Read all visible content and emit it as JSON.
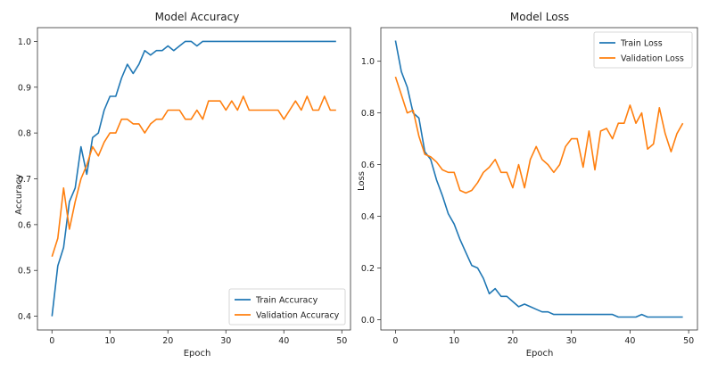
{
  "chart_data": [
    {
      "type": "line",
      "title": "Model Accuracy",
      "xlabel": "Epoch",
      "ylabel": "Accuracy",
      "xlim": [
        -2.5,
        51.5
      ],
      "ylim": [
        0.37,
        1.03
      ],
      "xticks": [
        0,
        10,
        20,
        30,
        40,
        50
      ],
      "yticks": [
        0.4,
        0.5,
        0.6,
        0.7,
        0.8,
        0.9,
        1.0
      ],
      "xtick_labels": [
        "0",
        "10",
        "20",
        "30",
        "40",
        "50"
      ],
      "ytick_labels": [
        "0.4",
        "0.5",
        "0.6",
        "0.7",
        "0.8",
        "0.9",
        "1.0"
      ],
      "grid": false,
      "legend_position": "bottom-right",
      "x": [
        0,
        1,
        2,
        3,
        4,
        5,
        6,
        7,
        8,
        9,
        10,
        11,
        12,
        13,
        14,
        15,
        16,
        17,
        18,
        19,
        20,
        21,
        22,
        23,
        24,
        25,
        26,
        27,
        28,
        29,
        30,
        31,
        32,
        33,
        34,
        35,
        36,
        37,
        38,
        39,
        40,
        41,
        42,
        43,
        44,
        45,
        46,
        47,
        48,
        49
      ],
      "series": [
        {
          "name": "Train Accuracy",
          "color": "#1f77b4",
          "values": [
            0.4,
            0.51,
            0.55,
            0.65,
            0.68,
            0.77,
            0.71,
            0.79,
            0.8,
            0.85,
            0.88,
            0.88,
            0.92,
            0.95,
            0.93,
            0.95,
            0.98,
            0.97,
            0.98,
            0.98,
            0.99,
            0.98,
            0.99,
            1.0,
            1.0,
            0.99,
            1.0,
            1.0,
            1.0,
            1.0,
            1.0,
            1.0,
            1.0,
            1.0,
            1.0,
            1.0,
            1.0,
            1.0,
            1.0,
            1.0,
            1.0,
            1.0,
            1.0,
            1.0,
            1.0,
            1.0,
            1.0,
            1.0,
            1.0,
            1.0
          ]
        },
        {
          "name": "Validation Accuracy",
          "color": "#ff7f0e",
          "values": [
            0.53,
            0.57,
            0.68,
            0.59,
            0.65,
            0.7,
            0.73,
            0.77,
            0.75,
            0.78,
            0.8,
            0.8,
            0.83,
            0.83,
            0.82,
            0.82,
            0.8,
            0.82,
            0.83,
            0.83,
            0.85,
            0.85,
            0.85,
            0.83,
            0.83,
            0.85,
            0.83,
            0.87,
            0.87,
            0.87,
            0.85,
            0.87,
            0.85,
            0.88,
            0.85,
            0.85,
            0.85,
            0.85,
            0.85,
            0.85,
            0.83,
            0.85,
            0.87,
            0.85,
            0.88,
            0.85,
            0.85,
            0.88,
            0.85,
            0.85
          ]
        }
      ]
    },
    {
      "type": "line",
      "title": "Model Loss",
      "xlabel": "Epoch",
      "ylabel": "Loss",
      "xlim": [
        -2.5,
        51.5
      ],
      "ylim": [
        -0.04,
        1.13
      ],
      "xticks": [
        0,
        10,
        20,
        30,
        40,
        50
      ],
      "yticks": [
        0.0,
        0.2,
        0.4,
        0.6,
        0.8,
        1.0
      ],
      "xtick_labels": [
        "0",
        "10",
        "20",
        "30",
        "40",
        "50"
      ],
      "ytick_labels": [
        "0.0",
        "0.2",
        "0.4",
        "0.6",
        "0.8",
        "1.0"
      ],
      "grid": false,
      "legend_position": "top-right",
      "x": [
        0,
        1,
        2,
        3,
        4,
        5,
        6,
        7,
        8,
        9,
        10,
        11,
        12,
        13,
        14,
        15,
        16,
        17,
        18,
        19,
        20,
        21,
        22,
        23,
        24,
        25,
        26,
        27,
        28,
        29,
        30,
        31,
        32,
        33,
        34,
        35,
        36,
        37,
        38,
        39,
        40,
        41,
        42,
        43,
        44,
        45,
        46,
        47,
        48,
        49
      ],
      "series": [
        {
          "name": "Train Loss",
          "color": "#1f77b4",
          "values": [
            1.08,
            0.96,
            0.9,
            0.8,
            0.78,
            0.65,
            0.62,
            0.54,
            0.48,
            0.41,
            0.37,
            0.31,
            0.26,
            0.21,
            0.2,
            0.16,
            0.1,
            0.12,
            0.09,
            0.09,
            0.07,
            0.05,
            0.06,
            0.05,
            0.04,
            0.03,
            0.03,
            0.02,
            0.02,
            0.02,
            0.02,
            0.02,
            0.02,
            0.02,
            0.02,
            0.02,
            0.02,
            0.02,
            0.01,
            0.01,
            0.01,
            0.01,
            0.02,
            0.01,
            0.01,
            0.01,
            0.01,
            0.01,
            0.01,
            0.01
          ]
        },
        {
          "name": "Validation Loss",
          "color": "#ff7f0e",
          "values": [
            0.94,
            0.87,
            0.8,
            0.81,
            0.71,
            0.64,
            0.63,
            0.61,
            0.58,
            0.57,
            0.57,
            0.5,
            0.49,
            0.5,
            0.53,
            0.57,
            0.59,
            0.62,
            0.57,
            0.57,
            0.51,
            0.6,
            0.51,
            0.62,
            0.67,
            0.62,
            0.6,
            0.57,
            0.6,
            0.67,
            0.7,
            0.7,
            0.59,
            0.73,
            0.58,
            0.73,
            0.74,
            0.7,
            0.76,
            0.76,
            0.83,
            0.76,
            0.8,
            0.66,
            0.68,
            0.82,
            0.72,
            0.65,
            0.72,
            0.76
          ]
        }
      ]
    }
  ]
}
